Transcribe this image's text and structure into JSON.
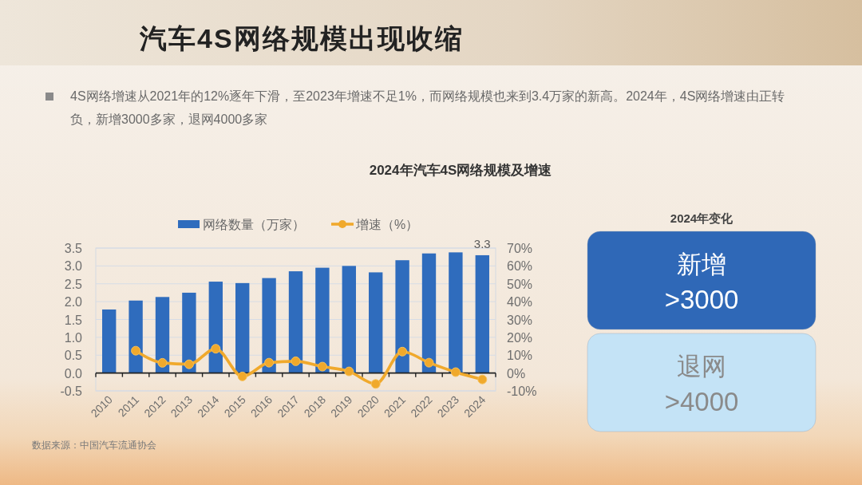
{
  "chart_data": [
    {
      "type": "bar",
      "title": "2024年汽车4S网络规模及增速",
      "annotations": [
        "汽车4S网络规模出现收缩",
        "4S网络增速从2021年的12%逐年下滑，至2023年增速不足1%，而网络规模也来到3.4万家的新高。2024年，4S网络增速由正转负，新增3000多家，退网4000多家",
        "数据来源：中国汽车流通协会"
      ],
      "categories": [
        "2010",
        "2011",
        "2012",
        "2013",
        "2014",
        "2015",
        "2016",
        "2017",
        "2018",
        "2019",
        "2020",
        "2021",
        "2022",
        "2023",
        "2024"
      ],
      "series": [
        {
          "name": "网络数量（万家）",
          "type": "bar",
          "color": "#2f6cbd",
          "values": [
            1.78,
            2.03,
            2.13,
            2.25,
            2.56,
            2.52,
            2.66,
            2.85,
            2.95,
            3.0,
            2.82,
            3.16,
            3.35,
            3.38,
            3.3
          ],
          "value_labels": [
            null,
            null,
            null,
            null,
            null,
            null,
            null,
            null,
            null,
            null,
            null,
            null,
            null,
            null,
            "3.3"
          ]
        },
        {
          "name": "增速（%）",
          "type": "line",
          "axis": "y2",
          "color": "#f0a92c",
          "values": [
            null,
            12.5,
            5.7,
            4.9,
            13.6,
            -1.9,
            5.8,
            6.6,
            3.6,
            0.9,
            -6.1,
            12,
            5.8,
            0.5,
            -3.6
          ]
        }
      ],
      "ylim": [
        -0.5,
        3.5
      ],
      "yticks": [
        {
          "value": -0.5,
          "label": "-0.5"
        },
        {
          "value": 0,
          "label": "0.0"
        },
        {
          "value": 0.5,
          "label": "0.5"
        },
        {
          "value": 1,
          "label": "1.0"
        },
        {
          "value": 1.5,
          "label": "1.5"
        },
        {
          "value": 2,
          "label": "2.0"
        },
        {
          "value": 2.5,
          "label": "2.5"
        },
        {
          "value": 3,
          "label": "3.0"
        },
        {
          "value": 3.5,
          "label": "3.5"
        }
      ],
      "y2lim": [
        -10,
        70
      ],
      "y2ticks": [
        {
          "value": -10,
          "label": "-10%"
        },
        {
          "value": 0,
          "label": "0%"
        },
        {
          "value": 10,
          "label": "10%"
        },
        {
          "value": 20,
          "label": "20%"
        },
        {
          "value": 30,
          "label": "30%"
        },
        {
          "value": 40,
          "label": "40%"
        },
        {
          "value": 50,
          "label": "50%"
        },
        {
          "value": 60,
          "label": "60%"
        },
        {
          "value": 70,
          "label": "70%"
        }
      ],
      "grid": "y",
      "legend": "top",
      "marker": "circle"
    },
    {
      "type": "other",
      "title": "2024年变化",
      "annotations": [
        "新增",
        ">3000",
        "退网",
        ">4000"
      ],
      "colors": [
        "#2f68b7",
        "#c4e3f6"
      ]
    }
  ]
}
